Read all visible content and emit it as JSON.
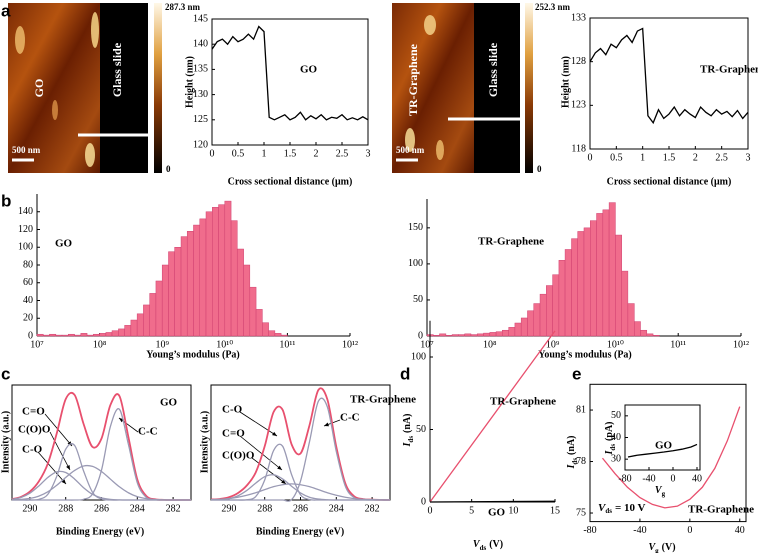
{
  "panels": [
    "a",
    "b",
    "c",
    "d",
    "e"
  ],
  "images": [
    {
      "sample": "GO",
      "substrate": "Glass slide",
      "scale": "500 nm",
      "colorbar_max": "287.3 nm",
      "colorbar_min": "0"
    },
    {
      "sample": "TR-Graphene",
      "substrate": "Glass slide",
      "scale": "500 nm",
      "colorbar_max": "252.3 nm",
      "colorbar_min": "0"
    }
  ],
  "chart_data": [
    {
      "type": "line",
      "annotations": [
        "GO"
      ],
      "x_label": "Cross sectional distance (μm)",
      "y_label": "Height (nm)",
      "x": [
        0,
        0.1,
        0.2,
        0.3,
        0.4,
        0.5,
        0.6,
        0.7,
        0.8,
        0.9,
        1,
        1.1,
        1.2,
        1.3,
        1.4,
        1.5,
        1.6,
        1.7,
        1.8,
        1.9,
        2,
        2.1,
        2.2,
        2.3,
        2.4,
        2.5,
        2.6,
        2.7,
        2.8,
        2.9,
        3
      ],
      "series": [
        {
          "color": "#000000",
          "values": [
            139,
            140.5,
            141,
            140,
            141.5,
            140.5,
            141,
            142,
            141,
            143.5,
            142.5,
            125.5,
            125,
            125.5,
            126,
            125,
            125.5,
            126.5,
            125,
            125.8,
            125.2,
            126,
            125,
            125.5,
            125.3,
            126,
            125,
            125.4,
            125,
            125.6,
            125
          ]
        }
      ],
      "xlim": [
        0,
        3
      ],
      "xticks": [
        0,
        0.5,
        1,
        1.5,
        2,
        2.5,
        3
      ],
      "ylim": [
        120,
        145
      ],
      "yticks": [
        120,
        125,
        130,
        135,
        140,
        145
      ]
    },
    {
      "type": "line",
      "annotations": [
        "TR-Graphene"
      ],
      "x_label": "Cross sectional distance (μm)",
      "y_label": "Height (nm)",
      "x": [
        0,
        0.1,
        0.2,
        0.3,
        0.4,
        0.5,
        0.6,
        0.7,
        0.8,
        0.9,
        1,
        1.1,
        1.2,
        1.3,
        1.4,
        1.5,
        1.6,
        1.7,
        1.8,
        1.9,
        2,
        2.1,
        2.2,
        2.3,
        2.4,
        2.5,
        2.6,
        2.7,
        2.8,
        2.9,
        3
      ],
      "series": [
        {
          "color": "#000000",
          "values": [
            128,
            129,
            129.5,
            128.8,
            130,
            129.6,
            130.5,
            131,
            130.2,
            131.5,
            131.8,
            121.8,
            121,
            122.5,
            121.5,
            122,
            122.8,
            121.8,
            122.5,
            122,
            121.6,
            122.8,
            122.2,
            121.8,
            122.5,
            122,
            122.3,
            121.7,
            122.4,
            121.5,
            122.2
          ]
        }
      ],
      "xlim": [
        0,
        3
      ],
      "xticks": [
        0,
        0.5,
        1,
        1.5,
        2,
        2.5,
        3
      ],
      "ylim": [
        118,
        133
      ],
      "yticks": [
        118,
        123,
        128,
        133
      ]
    },
    {
      "type": "histogram",
      "annotations": [
        "GO"
      ],
      "x_label": "Young’s modulus (Pa)",
      "color": "#f06c8c",
      "log_x": true,
      "bins": [
        10000000.0,
        12600000.0,
        15800000.0,
        20000000.0,
        25100000.0,
        31600000.0,
        39800000.0,
        50100000.0,
        63100000.0,
        79400000.0,
        100000000.0,
        126000000.0,
        158000000.0,
        200000000.0,
        251000000.0,
        316000000.0,
        398000000.0,
        501000000.0,
        631000000.0,
        794000000.0,
        1000000000.0,
        1260000000.0,
        1580000000.0,
        2000000000.0,
        2510000000.0,
        3160000000.0,
        3980000000.0,
        5010000000.0,
        6310000000.0,
        7940000000.0,
        10000000000.0,
        12600000000.0,
        15800000000.0,
        20000000000.0,
        25100000000.0,
        31600000000.0,
        39800000000.0,
        50100000000.0,
        63100000000.0,
        79400000000.0,
        100000000000.0
      ],
      "values": [
        2,
        1,
        2,
        1,
        1,
        2,
        1,
        3,
        1,
        2,
        3,
        4,
        6,
        8,
        12,
        18,
        25,
        35,
        48,
        62,
        80,
        95,
        100,
        112,
        118,
        125,
        132,
        140,
        145,
        148,
        152,
        130,
        98,
        80,
        55,
        30,
        15,
        6,
        3,
        1
      ],
      "xlim": [
        10000000.0,
        1000000000000.0
      ],
      "xticks": [
        {
          "value": 10000000.0,
          "label": "10⁷"
        },
        {
          "value": 100000000.0,
          "label": "10⁸"
        },
        {
          "value": 1000000000.0,
          "label": "10⁹"
        },
        {
          "value": 10000000000.0,
          "label": "10¹⁰"
        },
        {
          "value": 100000000000.0,
          "label": "10¹¹"
        },
        {
          "value": 1000000000000.0,
          "label": "10¹²"
        }
      ],
      "ylim": [
        0,
        160
      ],
      "yticks": [
        0,
        20,
        40,
        60,
        80,
        100,
        120,
        140
      ]
    },
    {
      "type": "histogram",
      "annotations": [
        "TR-Graphene"
      ],
      "x_label": "Young’s modulus (Pa)",
      "color": "#f06c8c",
      "log_x": true,
      "bins": [
        10000000.0,
        12600000.0,
        15800000.0,
        20000000.0,
        25100000.0,
        31600000.0,
        39800000.0,
        50100000.0,
        63100000.0,
        79400000.0,
        100000000.0,
        126000000.0,
        158000000.0,
        200000000.0,
        251000000.0,
        316000000.0,
        398000000.0,
        501000000.0,
        631000000.0,
        794000000.0,
        1000000000.0,
        1260000000.0,
        1580000000.0,
        2000000000.0,
        2510000000.0,
        3160000000.0,
        3980000000.0,
        5010000000.0,
        6310000000.0,
        7940000000.0,
        10000000000.0,
        12600000000.0,
        15800000000.0,
        20000000000.0,
        25100000000.0,
        31600000000.0,
        39800000000.0,
        50100000000.0,
        63100000000.0,
        79400000000.0,
        100000000000.0
      ],
      "values": [
        2,
        1,
        3,
        1,
        2,
        2,
        3,
        2,
        3,
        4,
        5,
        6,
        8,
        12,
        18,
        25,
        35,
        45,
        58,
        70,
        85,
        105,
        120,
        135,
        145,
        150,
        160,
        170,
        175,
        185,
        140,
        90,
        45,
        20,
        8,
        3,
        1,
        0,
        0,
        0
      ],
      "xlim": [
        10000000.0,
        1000000000000.0
      ],
      "xticks": [
        {
          "value": 10000000.0,
          "label": "10⁷"
        },
        {
          "value": 100000000.0,
          "label": "10⁸"
        },
        {
          "value": 1000000000.0,
          "label": "10⁹"
        },
        {
          "value": 10000000000.0,
          "label": "10¹⁰"
        },
        {
          "value": 100000000000.0,
          "label": "10¹¹"
        },
        {
          "value": 1000000000000.0,
          "label": "10¹²"
        }
      ],
      "ylim": [
        0,
        190
      ],
      "yticks": [
        0,
        50,
        100,
        150
      ]
    },
    {
      "type": "line",
      "annotations": [
        "GO",
        "C=O",
        "C(O)O",
        "C-O",
        "C-C"
      ],
      "x_label": "Binding Energy (eV)",
      "y_label": "Intensity (a.u.)",
      "smooth": true,
      "x": [
        291,
        290.5,
        290,
        289.5,
        289,
        288.5,
        288,
        287.5,
        287,
        286.5,
        286,
        285.5,
        285,
        284.5,
        284,
        283.5,
        283,
        282.5,
        282,
        281.5,
        281
      ],
      "series": [
        {
          "color": "#e8506e",
          "values": [
            0.8,
            2.7,
            7.3,
            16.2,
            31.6,
            57.9,
            87.7,
            91.3,
            66.1,
            46.1,
            53.5,
            82.7,
            90.5,
            54.9,
            17.9,
            3.5,
            0.6,
            0.1,
            0,
            0,
            0
          ]
        },
        {
          "color": "#9a9ab4",
          "values": [
            0,
            0,
            0,
            0.6,
            4.9,
            20.6,
            44.2,
            47.4,
            25.2,
            6.7,
            0.9,
            0,
            0,
            0,
            0,
            0,
            0,
            0,
            0,
            0,
            0
          ]
        },
        {
          "color": "#9a9ab4",
          "values": [
            0.6,
            2.2,
            5.9,
            12.2,
            19.6,
            24.5,
            23.9,
            18.2,
            10.7,
            4.9,
            1.8,
            0.5,
            0.1,
            0,
            0,
            0,
            0,
            0,
            0,
            0,
            0
          ]
        },
        {
          "color": "#9a9ab4",
          "values": [
            0.2,
            0.5,
            1.4,
            3.4,
            7.1,
            12.8,
            19.6,
            25.7,
            29.6,
            29.2,
            24.8,
            18.1,
            11.5,
            6.3,
            2.9,
            1.2,
            0.4,
            0.1,
            0,
            0,
            0
          ]
        },
        {
          "color": "#9a9ab4",
          "values": [
            0,
            0,
            0,
            0,
            0,
            0,
            0,
            0,
            0.6,
            5.3,
            26,
            64.1,
            78.9,
            48.6,
            15,
            2.3,
            0.2,
            0,
            0,
            0,
            0
          ]
        }
      ],
      "xlim": [
        291,
        281
      ],
      "xticks": [
        290,
        288,
        286,
        284,
        282
      ],
      "ylim": [
        0,
        100
      ]
    },
    {
      "type": "line",
      "annotations": [
        "TR-Graphene",
        "C-O",
        "C=O",
        "C(O)O",
        "C-C"
      ],
      "x_label": "Binding Energy (eV)",
      "y_label": "Intensity (a.u.)",
      "smooth": true,
      "x": [
        291,
        290.5,
        290,
        289.5,
        289,
        288.5,
        288,
        287.5,
        287,
        286.5,
        286,
        285.5,
        285,
        284.5,
        284,
        283.5,
        283,
        282.5,
        282,
        281.5,
        281
      ],
      "series": [
        {
          "color": "#e8506e",
          "values": [
            0.4,
            0.9,
            2.4,
            6,
            12.6,
            24,
            46.7,
            76.6,
            78.4,
            48.5,
            40.4,
            64.8,
            95.7,
            87.5,
            46.3,
            14.6,
            3.2,
            0.8,
            0.3,
            0.1,
            0
          ]
        },
        {
          "color": "#9a9ab4",
          "values": [
            0,
            0,
            0,
            0,
            0.2,
            3,
            17.4,
            43.1,
            46.8,
            22.2,
            4.6,
            0.4,
            0,
            0,
            0,
            0,
            0,
            0,
            0,
            0,
            0
          ]
        },
        {
          "color": "#9a9ab4",
          "values": [
            0.07,
            0.3,
            1.2,
            3.6,
            8.3,
            14.7,
            20.3,
            21.9,
            18.3,
            12,
            6.1,
            2.4,
            0.8,
            0.2,
            0,
            0,
            0,
            0,
            0,
            0,
            0
          ]
        },
        {
          "color": "#9a9ab4",
          "values": [
            0.3,
            0.6,
            1.2,
            2.4,
            4.1,
            6.3,
            9,
            11.6,
            13.3,
            14,
            13.3,
            11.6,
            9,
            6.3,
            4.1,
            2.4,
            1.2,
            0.6,
            0.3,
            0.1,
            0
          ]
        },
        {
          "color": "#9a9ab4",
          "values": [
            0,
            0,
            0,
            0,
            0,
            0,
            0,
            0,
            0,
            0.3,
            16.4,
            50.4,
            85.9,
            81,
            42.2,
            12.2,
            2,
            0.2,
            0,
            0,
            0
          ]
        }
      ],
      "xlim": [
        291,
        281
      ],
      "xticks": [
        290,
        288,
        286,
        284,
        282
      ],
      "ylim": [
        0,
        100
      ]
    },
    {
      "type": "line",
      "annotations": [
        "TR-Graphene",
        "GO"
      ],
      "x_label": {
        "symbol": "V",
        "sub": "ds",
        "unit": "(V)"
      },
      "y_label": {
        "symbol": "I",
        "sub": "ds",
        "unit": "(nA)"
      },
      "x": [
        0,
        15
      ],
      "series": [
        {
          "name": "TR-Graphene",
          "color": "#e8506e",
          "values": [
            0,
            118
          ]
        },
        {
          "name": "GO",
          "color": "#000000",
          "values": [
            0,
            0.5
          ]
        }
      ],
      "xlim": [
        0,
        15
      ],
      "xticks": [
        0,
        5,
        10,
        15
      ],
      "ylim": [
        0,
        125
      ],
      "yticks": [
        0,
        50,
        100
      ]
    },
    {
      "type": "line",
      "annotations": [
        {
          "symbol": "V",
          "sub": "ds",
          "unit": "= 10 V"
        },
        "TR-Graphene"
      ],
      "x_label": {
        "symbol": "V",
        "sub": "g",
        "unit": "(V)"
      },
      "y_label": {
        "symbol": "I",
        "sub": "ds",
        "unit": "(nA)"
      },
      "x": [
        -70,
        -60,
        -50,
        -40,
        -30,
        -20,
        -10,
        0,
        10,
        20,
        30,
        40
      ],
      "series": [
        {
          "color": "#e8506e",
          "values": [
            78.2,
            77.3,
            76.5,
            75.9,
            75.5,
            75.3,
            75.4,
            75.8,
            76.5,
            77.6,
            79.2,
            81.2
          ]
        }
      ],
      "xlim": [
        -80,
        45
      ],
      "xticks": [
        -80,
        -40,
        0,
        40
      ],
      "ylim": [
        74.5,
        82.5
      ],
      "yticks": [
        75,
        78,
        81
      ]
    },
    {
      "type": "line",
      "annotations": [
        "GO"
      ],
      "x_label": {
        "symbol": "V",
        "sub": "g",
        "unit": ""
      },
      "y_label": {
        "symbol": "I",
        "sub": "ds",
        "unit": "(pA)"
      },
      "x": [
        -75,
        -60,
        -45,
        -30,
        -15,
        0,
        15,
        30,
        40
      ],
      "series": [
        {
          "color": "#000000",
          "values": [
            31,
            31.8,
            32.3,
            32.8,
            33.3,
            33.9,
            34.6,
            35.6,
            36.8
          ]
        }
      ],
      "xlim": [
        -80,
        45
      ],
      "xticks": [
        -80,
        -40,
        0,
        40
      ],
      "ylim": [
        25,
        55
      ],
      "yticks": [
        30,
        40,
        50
      ]
    }
  ]
}
